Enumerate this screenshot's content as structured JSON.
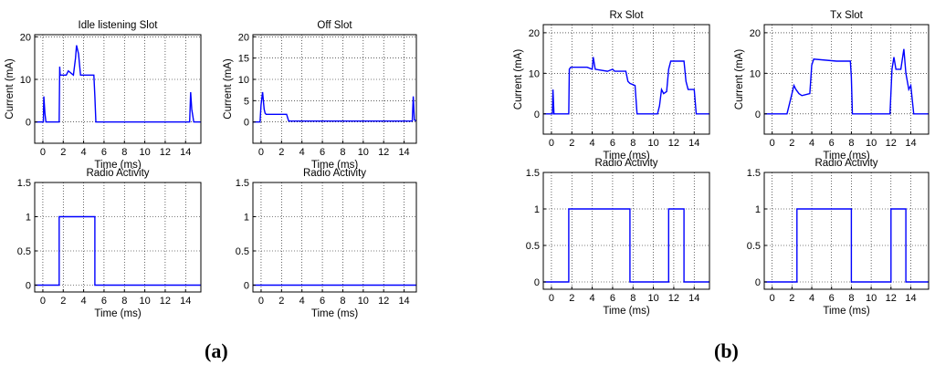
{
  "figure": {
    "labels": [
      "(a)",
      "(b)"
    ]
  },
  "chart_data": [
    {
      "type": "line",
      "title": "Idle listening Slot",
      "xlabel": "Time (ms)",
      "ylabel": "Current (mA)",
      "xlim": [
        -0.8,
        15.5
      ],
      "ylim": [
        -5,
        20.5
      ],
      "xticks": [
        0,
        2,
        4,
        6,
        8,
        10,
        12,
        14
      ],
      "yticks": [
        0,
        10,
        20
      ],
      "grid": true,
      "color": "#0000ff",
      "x": [
        -0.8,
        0.05,
        0.1,
        0.2,
        0.3,
        1.6,
        1.65,
        1.7,
        2.3,
        2.5,
        3.0,
        3.2,
        3.3,
        3.5,
        3.7,
        4.0,
        5.0,
        5.1,
        5.2,
        5.3,
        14.4,
        14.5,
        14.6,
        14.8,
        14.9,
        15.5
      ],
      "y": [
        0,
        0,
        6,
        2,
        0,
        0,
        13,
        11,
        11,
        12,
        11,
        15,
        18,
        16,
        11,
        11,
        11,
        6,
        0,
        0,
        0,
        7,
        3,
        0,
        0,
        0
      ]
    },
    {
      "type": "line",
      "title": "Off Slot",
      "xlabel": "Time (ms)",
      "ylabel": "Current (mA)",
      "xlim": [
        -0.8,
        15.2
      ],
      "ylim": [
        -5,
        20.5
      ],
      "xticks": [
        0,
        2,
        4,
        6,
        8,
        10,
        12,
        14
      ],
      "yticks": [
        0,
        5,
        10,
        15,
        20
      ],
      "grid": true,
      "color": "#0000ff",
      "x": [
        -0.8,
        -0.1,
        0,
        0.15,
        0.3,
        0.4,
        0.5,
        2.5,
        2.6,
        2.7,
        14.8,
        14.9,
        15.0,
        15.2
      ],
      "y": [
        0,
        0,
        4,
        7,
        3,
        2,
        1.8,
        1.8,
        1.0,
        0.2,
        0.2,
        6,
        0.5,
        0.2
      ]
    },
    {
      "type": "line",
      "title": "Radio Activity",
      "xlabel": "Time (ms)",
      "ylabel": "",
      "xlim": [
        -0.8,
        15.5
      ],
      "ylim": [
        -0.1,
        1.5
      ],
      "xticks": [
        0,
        2,
        4,
        6,
        8,
        10,
        12,
        14
      ],
      "yticks": [
        0,
        0.5,
        1,
        1.5
      ],
      "grid": true,
      "color": "#0000ff",
      "x": [
        -0.8,
        1.6,
        1.6,
        5.1,
        5.1,
        15.5
      ],
      "y": [
        0,
        0,
        1,
        1,
        0,
        0
      ]
    },
    {
      "type": "line",
      "title": "Radio Activity",
      "xlabel": "Time (ms)",
      "ylabel": "",
      "xlim": [
        -0.8,
        15.2
      ],
      "ylim": [
        -0.1,
        1.5
      ],
      "xticks": [
        0,
        2,
        4,
        6,
        8,
        10,
        12,
        14
      ],
      "yticks": [
        0,
        0.5,
        1,
        1.5
      ],
      "grid": true,
      "color": "#0000ff",
      "x": [
        -0.8,
        15.2
      ],
      "y": [
        0,
        0
      ]
    },
    {
      "type": "line",
      "title": "Rx Slot",
      "xlabel": "Time (ms)",
      "ylabel": "Current (mA)",
      "xlim": [
        -0.8,
        15.5
      ],
      "ylim": [
        -5,
        22
      ],
      "xticks": [
        0,
        2,
        4,
        6,
        8,
        10,
        12,
        14
      ],
      "yticks": [
        0,
        10,
        20
      ],
      "grid": true,
      "color": "#0000ff",
      "x": [
        -0.8,
        0.1,
        0.15,
        0.25,
        1.7,
        1.75,
        1.9,
        3.5,
        4.0,
        4.1,
        4.3,
        5.5,
        6.0,
        6.2,
        7.3,
        7.5,
        7.7,
        8.2,
        8.4,
        10.4,
        10.6,
        10.8,
        11.0,
        11.3,
        11.5,
        11.7,
        12.0,
        13.0,
        13.2,
        13.4,
        13.6,
        14.0,
        14.2,
        15.5
      ],
      "y": [
        0,
        0,
        6,
        0,
        0,
        11,
        11.5,
        11.5,
        11,
        14,
        11,
        10.5,
        11,
        10.5,
        10.5,
        8,
        7.5,
        7,
        0,
        0,
        2,
        6,
        5,
        5.5,
        11,
        13,
        13,
        13,
        8,
        6,
        6,
        6,
        0,
        0
      ]
    },
    {
      "type": "line",
      "title": "Tx Slot",
      "xlabel": "Time (ms)",
      "ylabel": "Current (mA)",
      "xlim": [
        -0.8,
        15.8
      ],
      "ylim": [
        -5,
        22
      ],
      "xticks": [
        0,
        2,
        4,
        6,
        8,
        10,
        12,
        14
      ],
      "yticks": [
        0,
        10,
        20
      ],
      "grid": true,
      "color": "#0000ff",
      "x": [
        -0.8,
        1.5,
        1.7,
        2.2,
        2.4,
        2.7,
        3.0,
        3.8,
        4.0,
        4.2,
        6.5,
        7.9,
        8.0,
        8.1,
        11.9,
        12.1,
        12.3,
        12.5,
        13.0,
        13.3,
        13.5,
        13.8,
        14.0,
        14.3,
        15.8
      ],
      "y": [
        0,
        0,
        2,
        7,
        6,
        5,
        4.5,
        5,
        12,
        13.5,
        13,
        13,
        9,
        0,
        0,
        11,
        14,
        11,
        11,
        16,
        10,
        6,
        7,
        0,
        0
      ]
    },
    {
      "type": "line",
      "title": "Radio Activity",
      "xlabel": "Time (ms)",
      "ylabel": "",
      "xlim": [
        -0.8,
        15.5
      ],
      "ylim": [
        -0.1,
        1.5
      ],
      "xticks": [
        0,
        2,
        4,
        6,
        8,
        10,
        12,
        14
      ],
      "yticks": [
        0,
        0.5,
        1,
        1.5
      ],
      "grid": true,
      "color": "#0000ff",
      "x": [
        -0.8,
        1.7,
        1.7,
        7.7,
        7.7,
        11.5,
        11.5,
        13.0,
        13.0,
        15.5
      ],
      "y": [
        0,
        0,
        1,
        1,
        0,
        0,
        1,
        1,
        0,
        0
      ]
    },
    {
      "type": "line",
      "title": "Radio Activity",
      "xlabel": "Time (ms)",
      "ylabel": "",
      "xlim": [
        -0.8,
        15.8
      ],
      "ylim": [
        -0.1,
        1.5
      ],
      "xticks": [
        0,
        2,
        4,
        6,
        8,
        10,
        12,
        14
      ],
      "yticks": [
        0,
        0.5,
        1,
        1.5
      ],
      "grid": true,
      "color": "#0000ff",
      "x": [
        -0.8,
        2.5,
        2.5,
        8.0,
        8.0,
        12.0,
        12.0,
        13.5,
        13.5,
        15.8
      ],
      "y": [
        0,
        0,
        1,
        1,
        0,
        0,
        1,
        1,
        0,
        0
      ]
    }
  ]
}
